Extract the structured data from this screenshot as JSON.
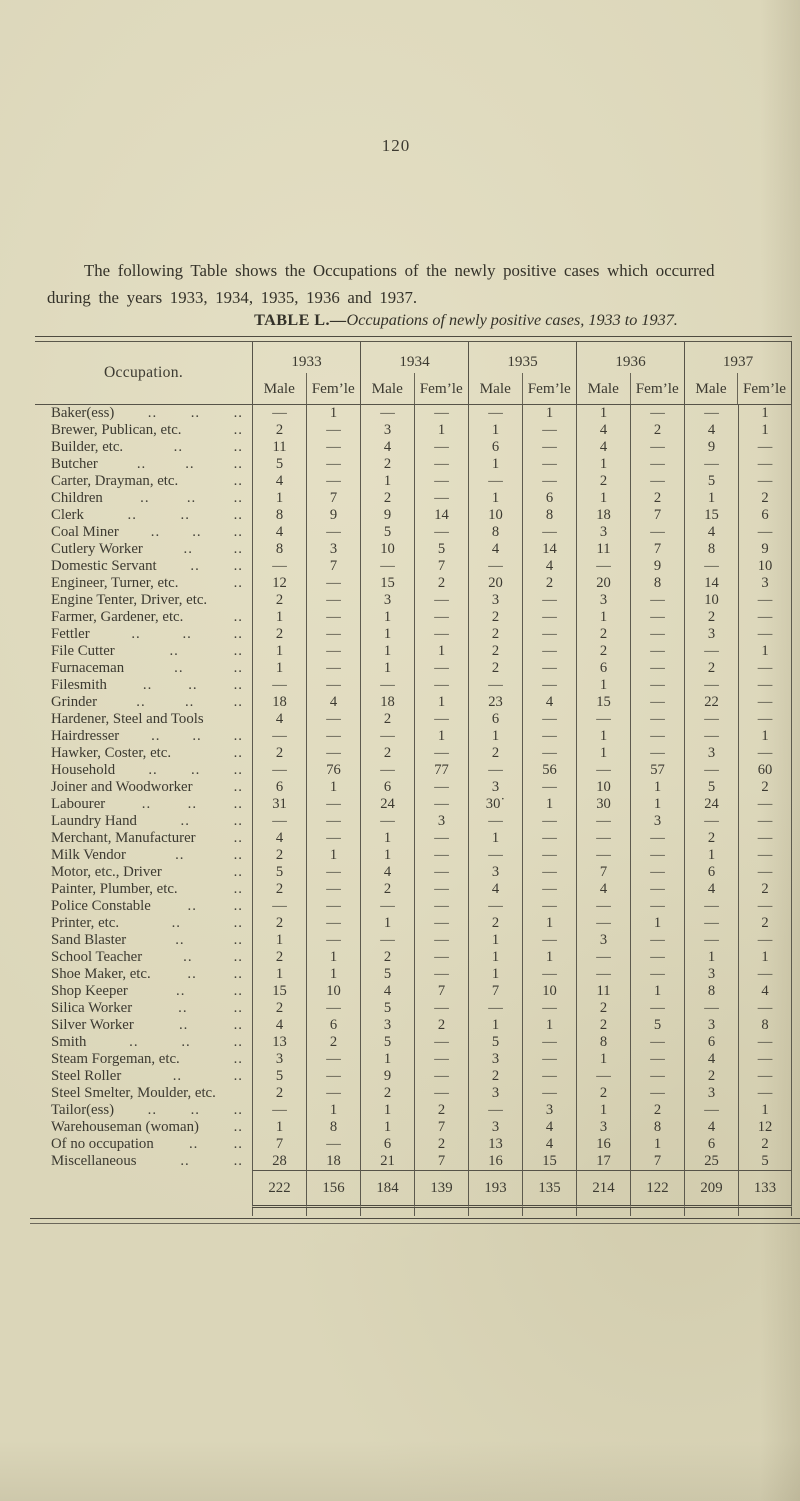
{
  "page": {
    "number": "120",
    "background_color": "#dbd6b9",
    "ink_color": "#3a382f",
    "rule_color": "#565348"
  },
  "intro": {
    "lines": [
      "The following Table shows the Occupations of the newly positive cases which occurred",
      "during the years 1933, 1934, 1935, 1936 and 1937."
    ]
  },
  "caption": {
    "bold": "TABLE L.",
    "dash": "—",
    "italic": "Occupations of newly positive cases, 1933 to 1937."
  },
  "table": {
    "occupation_header": "Occupation.",
    "years": [
      "1933",
      "1934",
      "1935",
      "1936",
      "1937"
    ],
    "sub_headers": [
      "Male",
      "Fem’le"
    ],
    "leader_glyph": "..",
    "empty_glyph": "—",
    "rows": [
      {
        "name": "Baker(ess)",
        "dots": 3,
        "values": [
          "—",
          "1",
          "—",
          "—",
          "—",
          "1",
          "1",
          "—",
          "—",
          "1"
        ]
      },
      {
        "name": "Brewer, Publican, etc.",
        "dots": 1,
        "values": [
          "2",
          "—",
          "3",
          "1",
          "1",
          "—",
          "4",
          "2",
          "4",
          "1"
        ]
      },
      {
        "name": "Builder, etc.",
        "dots": 2,
        "values": [
          "11",
          "—",
          "4",
          "—",
          "6",
          "—",
          "4",
          "—",
          "9",
          "—"
        ]
      },
      {
        "name": "Butcher",
        "dots": 3,
        "values": [
          "5",
          "—",
          "2",
          "—",
          "1",
          "—",
          "1",
          "—",
          "—",
          "—"
        ]
      },
      {
        "name": "Carter, Drayman, etc.",
        "dots": 1,
        "values": [
          "4",
          "—",
          "1",
          "—",
          "—",
          "—",
          "2",
          "—",
          "5",
          "—"
        ]
      },
      {
        "name": "Children",
        "dots": 3,
        "values": [
          "1",
          "7",
          "2",
          "—",
          "1",
          "6",
          "1",
          "2",
          "1",
          "2"
        ]
      },
      {
        "name": "Clerk",
        "dots": 3,
        "values": [
          "8",
          "9",
          "9",
          "14",
          "10",
          "8",
          "18",
          "7",
          "15",
          "6"
        ]
      },
      {
        "name": "Coal Miner",
        "dots": 3,
        "values": [
          "4",
          "—",
          "5",
          "—",
          "8",
          "—",
          "3",
          "—",
          "4",
          "—"
        ]
      },
      {
        "name": "Cutlery Worker",
        "dots": 2,
        "values": [
          "8",
          "3",
          "10",
          "5",
          "4",
          "14",
          "11",
          "7",
          "8",
          "9"
        ]
      },
      {
        "name": "Domestic Servant",
        "dots": 2,
        "values": [
          "—",
          "7",
          "—",
          "7",
          "—",
          "4",
          "—",
          "9",
          "—",
          "10"
        ]
      },
      {
        "name": "Engineer, Turner, etc.",
        "dots": 1,
        "values": [
          "12",
          "—",
          "15",
          "2",
          "20",
          "2",
          "20",
          "8",
          "14",
          "3"
        ]
      },
      {
        "name": "Engine Tenter, Driver, etc.",
        "dots": 0,
        "values": [
          "2",
          "—",
          "3",
          "—",
          "3",
          "—",
          "3",
          "—",
          "10",
          "—"
        ]
      },
      {
        "name": "Farmer, Gardener, etc.",
        "dots": 1,
        "values": [
          "1",
          "—",
          "1",
          "—",
          "2",
          "—",
          "1",
          "—",
          "2",
          "—"
        ]
      },
      {
        "name": "Fettler",
        "dots": 3,
        "values": [
          "2",
          "—",
          "1",
          "—",
          "2",
          "—",
          "2",
          "—",
          "3",
          "—"
        ]
      },
      {
        "name": "File Cutter",
        "dots": 2,
        "values": [
          "1",
          "—",
          "1",
          "1",
          "2",
          "—",
          "2",
          "—",
          "—",
          "1"
        ]
      },
      {
        "name": "Furnaceman",
        "dots": 2,
        "values": [
          "1",
          "—",
          "1",
          "—",
          "2",
          "—",
          "6",
          "—",
          "2",
          "—"
        ]
      },
      {
        "name": "Filesmith",
        "dots": 3,
        "values": [
          "—",
          "—",
          "—",
          "—",
          "—",
          "—",
          "1",
          "—",
          "—",
          "—"
        ]
      },
      {
        "name": "Grinder",
        "dots": 3,
        "values": [
          "18",
          "4",
          "18",
          "1",
          "23",
          "4",
          "15",
          "—",
          "22",
          "—"
        ]
      },
      {
        "name": "Hardener, Steel and Tools",
        "dots": 0,
        "values": [
          "4",
          "—",
          "2",
          "—",
          "6",
          "—",
          "—",
          "—",
          "—",
          "—"
        ]
      },
      {
        "name": "Hairdresser",
        "dots": 3,
        "values": [
          "—",
          "—",
          "—",
          "1",
          "1",
          "—",
          "1",
          "—",
          "—",
          "1"
        ]
      },
      {
        "name": "Hawker, Coster, etc.",
        "dots": 1,
        "values": [
          "2",
          "—",
          "2",
          "—",
          "2",
          "—",
          "1",
          "—",
          "3",
          "—"
        ]
      },
      {
        "name": "Household",
        "dots": 3,
        "values": [
          "—",
          "76",
          "—",
          "77",
          "—",
          "56",
          "—",
          "57",
          "—",
          "60"
        ]
      },
      {
        "name": "Joiner and Woodworker",
        "dots": 1,
        "values": [
          "6",
          "1",
          "6",
          "—",
          "3",
          "—",
          "10",
          "1",
          "5",
          "2"
        ]
      },
      {
        "name": "Labourer",
        "dots": 3,
        "values": [
          "31",
          "—",
          "24",
          "—",
          "30˙",
          "1",
          "30",
          "1",
          "24",
          "—"
        ]
      },
      {
        "name": "Laundry Hand",
        "dots": 2,
        "values": [
          "—",
          "—",
          "—",
          "3",
          "—",
          "—",
          "—",
          "3",
          "—",
          "—"
        ]
      },
      {
        "name": "Merchant, Manufacturer",
        "dots": 1,
        "values": [
          "4",
          "—",
          "1",
          "—",
          "1",
          "—",
          "—",
          "—",
          "2",
          "—"
        ]
      },
      {
        "name": "Milk Vendor",
        "dots": 2,
        "values": [
          "2",
          "1",
          "1",
          "—",
          "—",
          "—",
          "—",
          "—",
          "1",
          "—"
        ]
      },
      {
        "name": "Motor, etc., Driver",
        "dots": 1,
        "values": [
          "5",
          "—",
          "4",
          "—",
          "3",
          "—",
          "7",
          "—",
          "6",
          "—"
        ]
      },
      {
        "name": "Painter, Plumber, etc.",
        "dots": 1,
        "values": [
          "2",
          "—",
          "2",
          "—",
          "4",
          "—",
          "4",
          "—",
          "4",
          "2"
        ]
      },
      {
        "name": "Police Constable",
        "dots": 2,
        "values": [
          "—",
          "—",
          "—",
          "—",
          "—",
          "—",
          "—",
          "—",
          "—",
          "—"
        ]
      },
      {
        "name": "Printer, etc.",
        "dots": 2,
        "values": [
          "2",
          "—",
          "1",
          "—",
          "2",
          "1",
          "—",
          "1",
          "—",
          "2"
        ]
      },
      {
        "name": "Sand Blaster",
        "dots": 2,
        "values": [
          "1",
          "—",
          "—",
          "—",
          "1",
          "—",
          "3",
          "—",
          "—",
          "—"
        ]
      },
      {
        "name": "School Teacher",
        "dots": 2,
        "values": [
          "2",
          "1",
          "2",
          "—",
          "1",
          "1",
          "—",
          "—",
          "1",
          "1"
        ]
      },
      {
        "name": "Shoe Maker, etc.",
        "dots": 2,
        "values": [
          "1",
          "1",
          "5",
          "—",
          "1",
          "—",
          "—",
          "—",
          "3",
          "—"
        ]
      },
      {
        "name": "Shop Keeper",
        "dots": 2,
        "values": [
          "15",
          "10",
          "4",
          "7",
          "7",
          "10",
          "11",
          "1",
          "8",
          "4"
        ]
      },
      {
        "name": "Silica Worker",
        "dots": 2,
        "values": [
          "2",
          "—",
          "5",
          "—",
          "—",
          "—",
          "2",
          "—",
          "—",
          "—"
        ]
      },
      {
        "name": "Silver Worker",
        "dots": 2,
        "values": [
          "4",
          "6",
          "3",
          "2",
          "1",
          "1",
          "2",
          "5",
          "3",
          "8"
        ]
      },
      {
        "name": "Smith",
        "dots": 3,
        "values": [
          "13",
          "2",
          "5",
          "—",
          "5",
          "—",
          "8",
          "—",
          "6",
          "—"
        ]
      },
      {
        "name": "Steam Forgeman, etc.",
        "dots": 1,
        "values": [
          "3",
          "—",
          "1",
          "—",
          "3",
          "—",
          "1",
          "—",
          "4",
          "—"
        ]
      },
      {
        "name": "Steel Roller",
        "dots": 2,
        "values": [
          "5",
          "—",
          "9",
          "—",
          "2",
          "—",
          "—",
          "—",
          "2",
          "—"
        ]
      },
      {
        "name": "Steel Smelter, Moulder, etc.",
        "dots": 0,
        "values": [
          "2",
          "—",
          "2",
          "—",
          "3",
          "—",
          "2",
          "—",
          "3",
          "—"
        ]
      },
      {
        "name": "Tailor(ess)",
        "dots": 3,
        "values": [
          "—",
          "1",
          "1",
          "2",
          "—",
          "3",
          "1",
          "2",
          "—",
          "1"
        ]
      },
      {
        "name": "Warehouseman (woman)",
        "dots": 1,
        "values": [
          "1",
          "8",
          "1",
          "7",
          "3",
          "4",
          "3",
          "8",
          "4",
          "12"
        ]
      },
      {
        "name": "Of no occupation",
        "dots": 2,
        "values": [
          "7",
          "—",
          "6",
          "2",
          "13",
          "4",
          "16",
          "1",
          "6",
          "2"
        ]
      },
      {
        "name": "Miscellaneous",
        "dots": 2,
        "values": [
          "28",
          "18",
          "21",
          "7",
          "16",
          "15",
          "17",
          "7",
          "25",
          "5"
        ]
      }
    ],
    "totals": [
      "222",
      "156",
      "184",
      "139",
      "193",
      "135",
      "214",
      "122",
      "209",
      "133"
    ]
  }
}
